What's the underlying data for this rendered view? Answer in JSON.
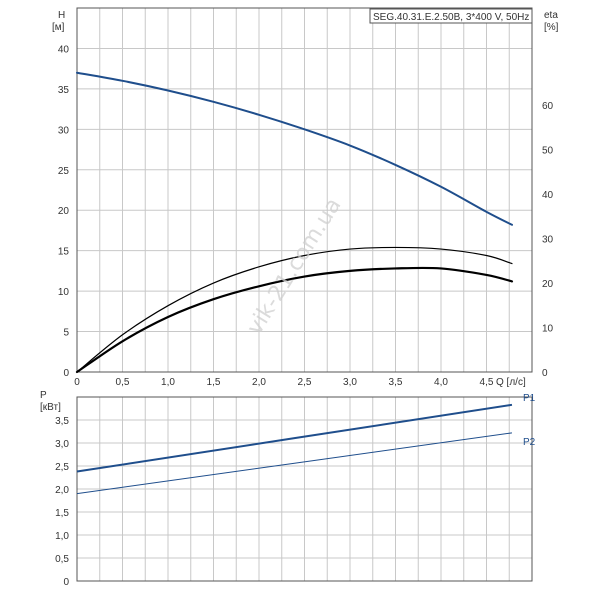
{
  "model_label": "SEG.40.31.E.2.50B, 3*400 V, 50Hz",
  "watermark": "vik-21.com.ua",
  "colors": {
    "blue": "#1f4e8c",
    "black": "#000000",
    "grid": "#c8c8c8"
  },
  "chart_data": [
    {
      "type": "line",
      "x_axis": {
        "label": "Q [л/с]",
        "range": [
          0,
          5.0
        ],
        "ticks": [
          "0",
          "0,5",
          "1,0",
          "1,5",
          "2,0",
          "2,5",
          "3,0",
          "3,5",
          "4,0",
          "4,5"
        ]
      },
      "y_left": {
        "label_line1": "H",
        "label_line2": "[м]",
        "range": [
          0,
          45
        ],
        "ticks": [
          "0",
          "5",
          "10",
          "15",
          "20",
          "25",
          "30",
          "35",
          "40"
        ]
      },
      "y_right": {
        "label_line1": "eta",
        "label_line2": "[%]",
        "range": [
          0,
          81.8
        ],
        "ticks": [
          "0",
          "10",
          "20",
          "30",
          "40",
          "50",
          "60"
        ]
      },
      "grid": true,
      "series": [
        {
          "axis": "left",
          "color": "#1f4e8c",
          "width": 2,
          "x": [
            0,
            0.5,
            1.0,
            1.5,
            2.0,
            2.5,
            3.0,
            3.5,
            4.0,
            4.5,
            4.78
          ],
          "y": [
            37.0,
            36.0,
            34.8,
            33.4,
            31.8,
            30.0,
            28.0,
            25.6,
            22.9,
            19.8,
            18.2
          ]
        },
        {
          "axis": "left",
          "color": "#000000",
          "width": 1.2,
          "x": [
            0,
            0.5,
            1.0,
            1.5,
            2.0,
            2.5,
            3.0,
            3.5,
            4.0,
            4.5,
            4.78
          ],
          "y": [
            0,
            4.6,
            8.2,
            11.0,
            13.0,
            14.4,
            15.2,
            15.4,
            15.2,
            14.4,
            13.4
          ]
        },
        {
          "axis": "left",
          "color": "#000000",
          "width": 2.2,
          "x": [
            0,
            0.5,
            1.0,
            1.5,
            2.0,
            2.5,
            3.0,
            3.5,
            4.0,
            4.5,
            4.78
          ],
          "y": [
            0,
            3.8,
            6.8,
            9.0,
            10.6,
            11.8,
            12.5,
            12.8,
            12.8,
            12.0,
            11.2
          ]
        }
      ]
    },
    {
      "type": "line",
      "x_axis": {
        "range": [
          0,
          5.0
        ]
      },
      "y_left": {
        "label_line1": "P",
        "label_line2": "[кВт]",
        "range": [
          0,
          4.0
        ],
        "ticks": [
          "0",
          "0,5",
          "1,0",
          "1,5",
          "2,0",
          "2,5",
          "3,0",
          "3,5"
        ]
      },
      "grid": true,
      "series": [
        {
          "name": "P1",
          "color": "#1f4e8c",
          "width": 2,
          "x": [
            0,
            4.78
          ],
          "y": [
            2.38,
            3.83
          ]
        },
        {
          "name": "P2",
          "color": "#1f4e8c",
          "width": 1,
          "x": [
            0,
            4.78
          ],
          "y": [
            1.9,
            3.22
          ]
        }
      ]
    }
  ]
}
